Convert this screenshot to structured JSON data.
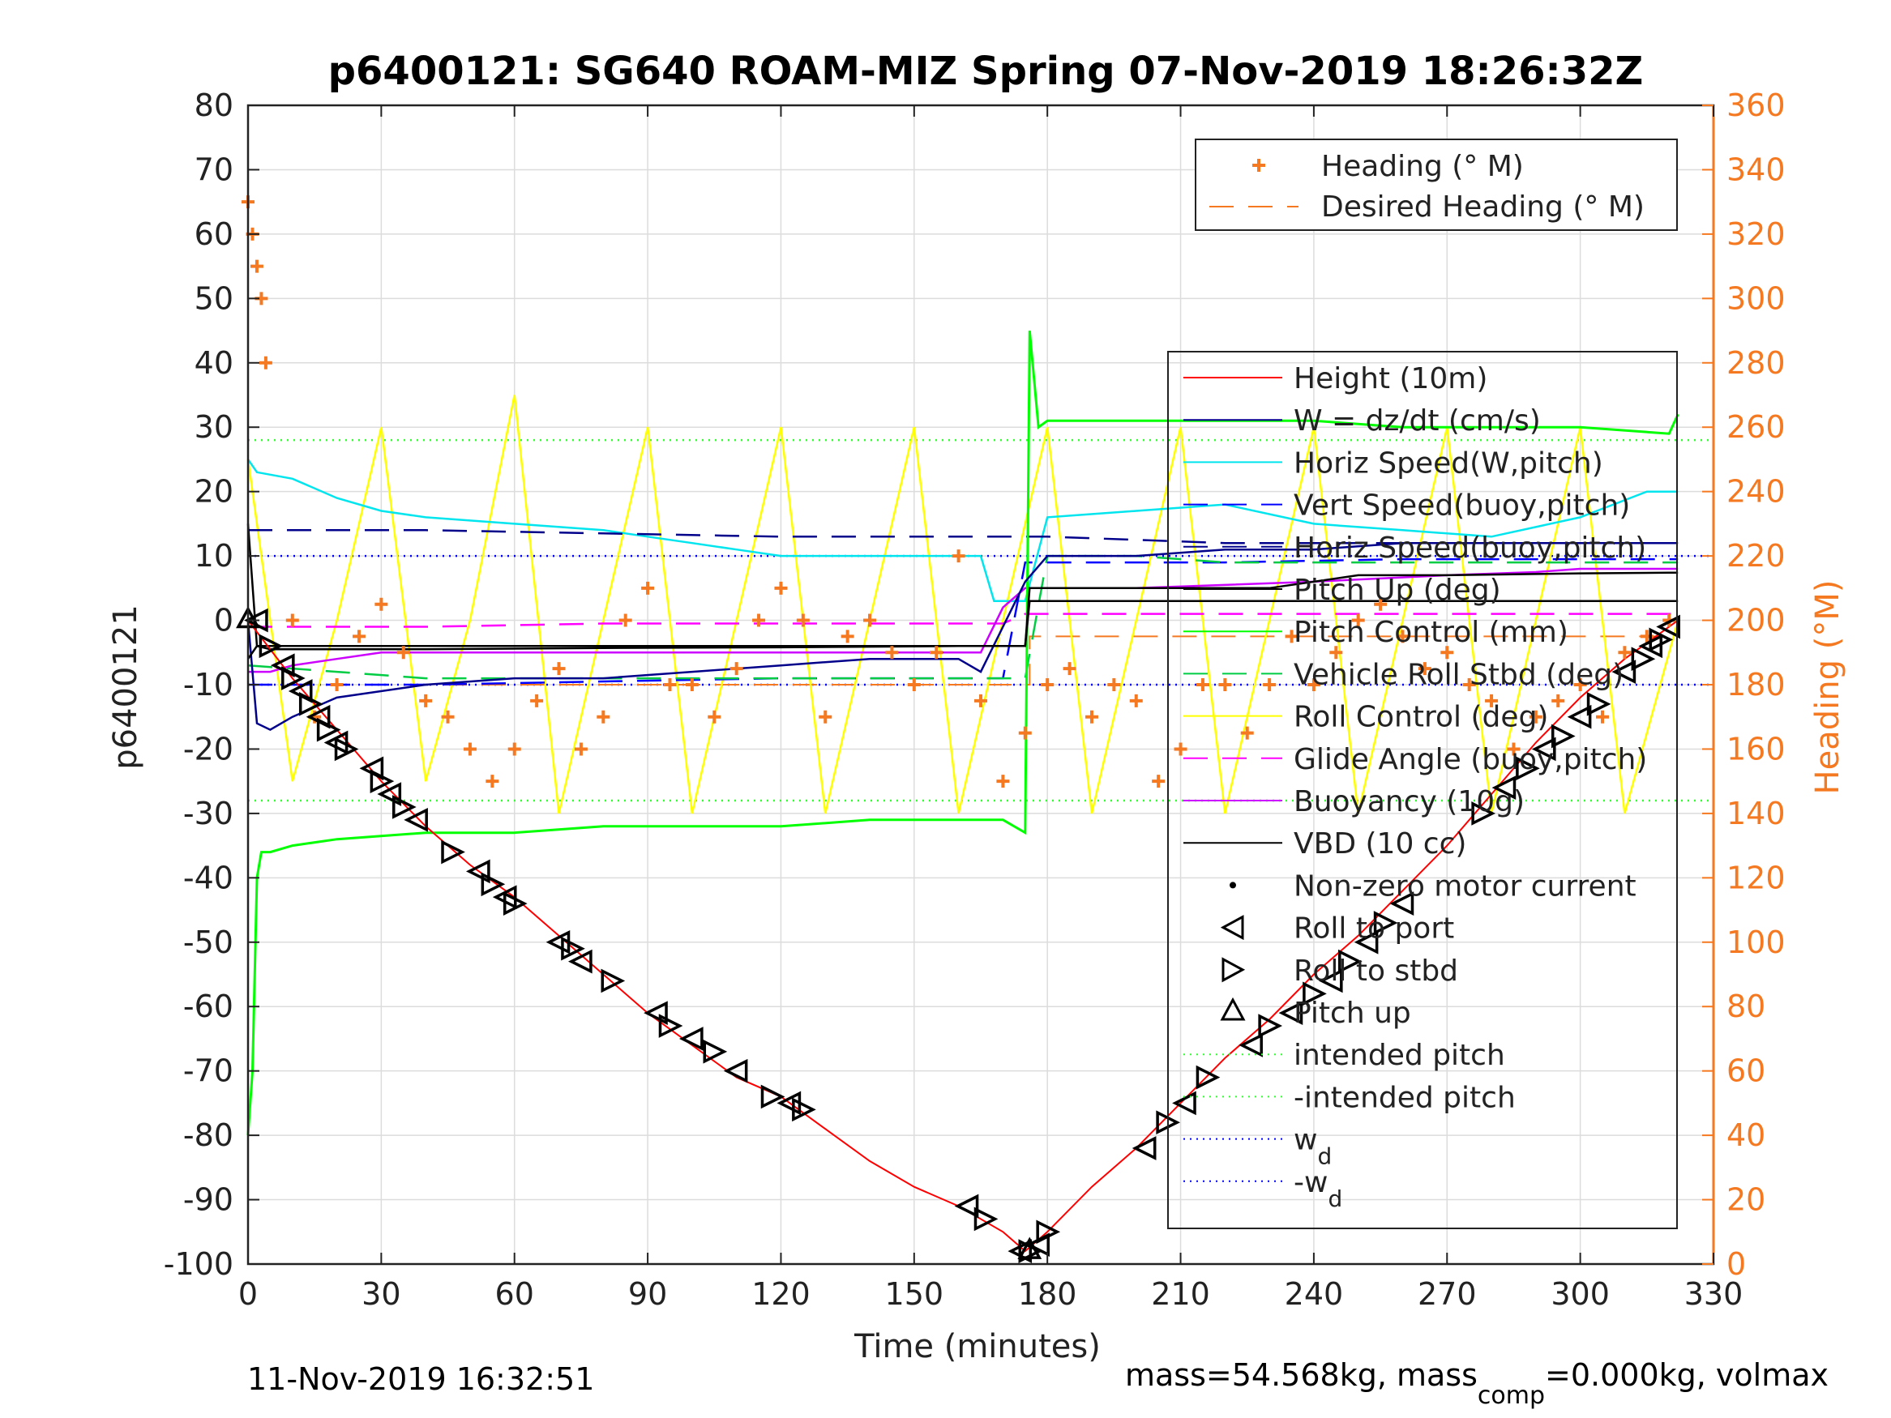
{
  "figure": {
    "title": "p6400121: SG640 ROAM-MIZ Spring 07-Nov-2019 18:26:32Z",
    "footer_left": "11-Nov-2019 16:32:51",
    "footer_right": {
      "part1": "mass=54.568kg, mass",
      "sub": "comp",
      "part2": "=0.000kg, volmax"
    },
    "colors": {
      "heading": "#f47920",
      "height": "#ff0000",
      "w": "#00008b",
      "horiz_speed": "#00e5ee",
      "vert_speed_buoy": "#0000ff",
      "horiz_speed_buoy": "#00008b",
      "pitch_up": "#000000",
      "pitch_control": "#00ff00",
      "roll_stbd": "#00cc44",
      "roll_control": "#ffff00",
      "glide_angle": "#ff00ff",
      "buoyancy": "#cc00ff",
      "vbd": "#000000",
      "intended": "#33ff33",
      "wd": "#0000ff"
    }
  },
  "chart_data": {
    "type": "line",
    "title": "p6400121: SG640 ROAM-MIZ Spring 07-Nov-2019 18:26:32Z",
    "xlabel": "Time (minutes)",
    "ylabel_left": "p6400121",
    "ylabel_right": "Heading (°M)",
    "xlim": [
      0,
      330
    ],
    "ylim_left": [
      -100,
      80
    ],
    "ylim_right": [
      0,
      360
    ],
    "xticks": [
      "0",
      "30",
      "60",
      "90",
      "120",
      "150",
      "180",
      "210",
      "240",
      "270",
      "300",
      "330"
    ],
    "yticks_left": [
      "80",
      "70",
      "60",
      "50",
      "40",
      "30",
      "20",
      "10",
      "0",
      "-10",
      "-20",
      "-30",
      "-40",
      "-50",
      "-60",
      "-70",
      "-80",
      "-90",
      "-100"
    ],
    "yticks_right": [
      "360",
      "340",
      "320",
      "300",
      "280",
      "260",
      "240",
      "220",
      "200",
      "180",
      "160",
      "140",
      "120",
      "100",
      "80",
      "60",
      "40",
      "20",
      "0"
    ],
    "grid": true,
    "legend_heading": [
      "Heading (° M)",
      "Desired Heading (° M)"
    ],
    "legend_main": [
      {
        "label": "Height (10m)",
        "key": "height"
      },
      {
        "label": "W = dz/dt (cm/s)",
        "key": "w"
      },
      {
        "label": "Horiz Speed(W,pitch)",
        "key": "horiz_speed"
      },
      {
        "label": "Vert Speed(buoy,pitch)",
        "key": "vert_speed_buoy"
      },
      {
        "label": "Horiz Speed(buoy,pitch)",
        "key": "horiz_speed_buoy"
      },
      {
        "label": "Pitch Up (deg)",
        "key": "pitch_up"
      },
      {
        "label": "Pitch Control (mm)",
        "key": "pitch_control"
      },
      {
        "label": "Vehicle Roll Stbd (deg)",
        "key": "roll_stbd"
      },
      {
        "label": "Roll Control (deg)",
        "key": "roll_control"
      },
      {
        "label": "Glide Angle (buoy,pitch)",
        "key": "glide_angle"
      },
      {
        "label": "Buoyancy (10g)",
        "key": "buoyancy"
      },
      {
        "label": "VBD (10 cc)",
        "key": "vbd"
      },
      {
        "label": "Non-zero motor current",
        "key": "motor"
      },
      {
        "label": "Roll to port",
        "key": "roll_port"
      },
      {
        "label": "Roll to stbd",
        "key": "roll_stbd_marker"
      },
      {
        "label": "Pitch up",
        "key": "pitch_up_marker"
      },
      {
        "label": "intended pitch",
        "key": "intended"
      },
      {
        "label": "-intended pitch",
        "key": "neg_intended"
      },
      {
        "label": "w",
        "sub": "d",
        "key": "wd"
      },
      {
        "label": "-w",
        "sub": "d",
        "key": "neg_wd"
      }
    ],
    "series": {
      "height": {
        "x": [
          0,
          10,
          20,
          30,
          40,
          50,
          60,
          70,
          80,
          90,
          100,
          110,
          120,
          130,
          140,
          150,
          160,
          170,
          175,
          180,
          190,
          200,
          210,
          220,
          230,
          240,
          250,
          260,
          270,
          280,
          290,
          300,
          310,
          322
        ],
        "y": [
          0,
          -9,
          -17,
          -25,
          -32,
          -38,
          -43,
          -49,
          -55,
          -61,
          -66,
          -71,
          -74,
          -79,
          -84,
          -88,
          -91,
          -95,
          -98,
          -95,
          -88,
          -82,
          -75,
          -68,
          -62,
          -55,
          -49,
          -42,
          -35,
          -27,
          -19,
          -12,
          -6,
          0
        ]
      },
      "w": {
        "x": [
          0,
          2,
          5,
          10,
          20,
          40,
          60,
          80,
          100,
          120,
          140,
          160,
          165,
          170,
          175,
          180,
          200,
          220,
          240,
          260,
          280,
          300,
          315,
          322
        ],
        "y": [
          0,
          -16,
          -17,
          -15,
          -12,
          -10,
          -9,
          -9,
          -8,
          -7,
          -6,
          -6,
          -8,
          -1,
          6,
          10,
          10,
          11,
          11,
          12,
          12,
          12,
          12,
          12
        ]
      },
      "horiz_speed": {
        "x": [
          0,
          2,
          10,
          20,
          30,
          40,
          60,
          80,
          90,
          100,
          110,
          120,
          130,
          140,
          150,
          160,
          165,
          168,
          170,
          175,
          180,
          200,
          220,
          240,
          260,
          280,
          300,
          315,
          322
        ],
        "y": [
          25,
          23,
          22,
          19,
          17,
          16,
          15,
          14,
          13,
          12,
          11,
          10,
          10,
          10,
          10,
          10,
          10,
          3,
          3,
          3,
          16,
          17,
          18,
          15,
          14,
          13,
          16,
          20,
          20
        ]
      },
      "vert_speed_buoy": {
        "x": [
          0,
          3,
          40,
          80,
          120,
          160,
          170,
          175,
          180,
          220,
          260,
          300,
          322
        ],
        "y": [
          -10,
          -10,
          -10,
          -9.5,
          -9,
          -9,
          -9,
          9,
          9,
          9,
          9.5,
          9.5,
          9.5
        ]
      },
      "horiz_speed_buoy": {
        "x": [
          0,
          3,
          40,
          80,
          120,
          160,
          170,
          175,
          180,
          220,
          260,
          300,
          322
        ],
        "y": [
          14,
          14,
          14,
          13.5,
          13,
          13,
          13,
          13,
          13,
          12,
          12,
          12,
          12
        ]
      },
      "pitch_up": {
        "x": [
          0,
          2,
          5,
          15,
          40,
          80,
          120,
          160,
          175,
          176,
          178,
          180,
          200,
          230,
          250,
          270,
          290,
          300,
          320,
          322
        ],
        "y": [
          15,
          -4,
          -4.5,
          -4.5,
          -4.5,
          -4.3,
          -4.2,
          -4,
          -4,
          5,
          5,
          5,
          5,
          5,
          7,
          7,
          7.2,
          7.3,
          7.4,
          7.4
        ]
      },
      "pitch_control": {
        "x": [
          0,
          1,
          2,
          3,
          5,
          10,
          20,
          40,
          60,
          80,
          100,
          120,
          140,
          160,
          170,
          175,
          176,
          178,
          180,
          200,
          220,
          240,
          260,
          280,
          300,
          320,
          322
        ],
        "y": [
          -80,
          -70,
          -40,
          -36,
          -36,
          -35,
          -34,
          -33,
          -33,
          -32,
          -32,
          -32,
          -31,
          -31,
          -31,
          -33,
          45,
          30,
          31,
          31,
          31,
          31,
          30,
          30,
          30,
          29,
          32
        ]
      },
      "roll_stbd": {
        "x": [
          0,
          20,
          40,
          60,
          80,
          100,
          120,
          140,
          160,
          175,
          180,
          200,
          220,
          240,
          260,
          280,
          300,
          322
        ],
        "y": [
          -7,
          -8,
          -9,
          -9,
          -9,
          -9,
          -9,
          -9,
          -9,
          -9,
          10,
          10,
          9,
          9,
          9,
          9,
          9,
          9
        ]
      },
      "roll_control": {
        "x": [
          0,
          5,
          10,
          20,
          30,
          40,
          50,
          60,
          70,
          80,
          90,
          100,
          110,
          120,
          130,
          140,
          150,
          160,
          170,
          180,
          190,
          200,
          210,
          220,
          230,
          240,
          250,
          260,
          270,
          280,
          290,
          300,
          310,
          322
        ],
        "y": [
          25,
          0,
          -25,
          0,
          30,
          -25,
          0,
          35,
          -30,
          0,
          30,
          -30,
          0,
          30,
          -30,
          0,
          30,
          -30,
          0,
          30,
          -30,
          0,
          30,
          -30,
          0,
          30,
          -30,
          0,
          30,
          -30,
          0,
          30,
          -30,
          0
        ]
      },
      "glide_angle": {
        "x": [
          0,
          10,
          40,
          80,
          120,
          160,
          170,
          175,
          180,
          220,
          260,
          300,
          322
        ],
        "y": [
          -1,
          -1,
          -1,
          -0.5,
          -0.5,
          -0.5,
          -0.5,
          1,
          1,
          1,
          1,
          1,
          1
        ]
      },
      "buoyancy": {
        "x": [
          0,
          5,
          10,
          20,
          30,
          40,
          60,
          80,
          100,
          120,
          140,
          160,
          165,
          170,
          175,
          180,
          200,
          240,
          270,
          290,
          300,
          322
        ],
        "y": [
          -8,
          -8,
          -7,
          -6,
          -5,
          -5,
          -5,
          -5,
          -5,
          -5,
          -5,
          -5,
          -5,
          2,
          5,
          5,
          5,
          6,
          7,
          7.5,
          8,
          8
        ]
      },
      "vbd": {
        "x": [
          0,
          2,
          5,
          10,
          30,
          60,
          90,
          120,
          150,
          160,
          170,
          175,
          176,
          180,
          210,
          240,
          270,
          300,
          322
        ],
        "y": [
          -6,
          -4,
          -4,
          -4,
          -4,
          -4,
          -4,
          -4,
          -4,
          -4,
          -4,
          -4,
          3,
          3,
          3,
          3,
          3,
          3,
          3
        ]
      },
      "intended_pitch": 28,
      "neg_intended_pitch": -28,
      "wd": 10,
      "neg_wd": -10,
      "desired_heading": {
        "x": [
          0,
          176,
          176,
          322
        ],
        "y": [
          180,
          180,
          195,
          195
        ]
      },
      "heading_bursts": [
        {
          "t": [
            0,
            1,
            2,
            3,
            4
          ],
          "h": [
            330,
            320,
            310,
            300,
            280
          ]
        },
        {
          "t": [
            10,
            15,
            20,
            25,
            30,
            35,
            40,
            45,
            50,
            55,
            60,
            65,
            70,
            75,
            80,
            85,
            90,
            95,
            100,
            105,
            110,
            115,
            120,
            125,
            130,
            135,
            140,
            145,
            150,
            155,
            160,
            165,
            170,
            175
          ],
          "h": [
            200,
            170,
            180,
            195,
            205,
            190,
            175,
            170,
            160,
            150,
            160,
            175,
            185,
            160,
            170,
            200,
            210,
            180,
            180,
            170,
            185,
            200,
            210,
            200,
            170,
            195,
            200,
            190,
            180,
            190,
            220,
            175,
            150,
            165
          ]
        },
        {
          "t": [
            180,
            185,
            190,
            195,
            200,
            205,
            210,
            215,
            220,
            225,
            230,
            235,
            240,
            245,
            250,
            255,
            260,
            265,
            270,
            275,
            280,
            285,
            290,
            295,
            300,
            305,
            310,
            315,
            320
          ],
          "h": [
            180,
            185,
            170,
            180,
            175,
            150,
            160,
            180,
            180,
            165,
            180,
            195,
            180,
            190,
            200,
            205,
            195,
            185,
            190,
            180,
            175,
            160,
            170,
            175,
            180,
            170,
            190,
            195,
            200
          ]
        }
      ],
      "markers": {
        "x": [
          2,
          5,
          8,
          10,
          12,
          14,
          16,
          18,
          20,
          22,
          28,
          30,
          32,
          35,
          38,
          46,
          52,
          55,
          58,
          60,
          70,
          73,
          75,
          82,
          92,
          95,
          100,
          105,
          110,
          118,
          122,
          125,
          162,
          166,
          174,
          176,
          178,
          180,
          202,
          207,
          211,
          216,
          226,
          230,
          235,
          240,
          244,
          248,
          252,
          256,
          260,
          278,
          283,
          288,
          292,
          296,
          300,
          304,
          310,
          314,
          316,
          318,
          320
        ],
        "y": [
          0,
          -4,
          -7,
          -9,
          -11,
          -13,
          -15,
          -17,
          -19,
          -20,
          -23,
          -25,
          -27,
          -29,
          -31,
          -36,
          -39,
          -41,
          -43,
          -44,
          -50,
          -51,
          -53,
          -56,
          -61,
          -63,
          -65,
          -67,
          -70,
          -74,
          -75,
          -76,
          -91,
          -93,
          -98,
          -98,
          -97,
          -95,
          -82,
          -78,
          -75,
          -71,
          -66,
          -63,
          -61,
          -58,
          -56,
          -53,
          -50,
          -47,
          -44,
          -30,
          -26,
          -23,
          -20,
          -18,
          -15,
          -13,
          -8,
          -6,
          -4,
          -3,
          -1
        ]
      }
    }
  }
}
